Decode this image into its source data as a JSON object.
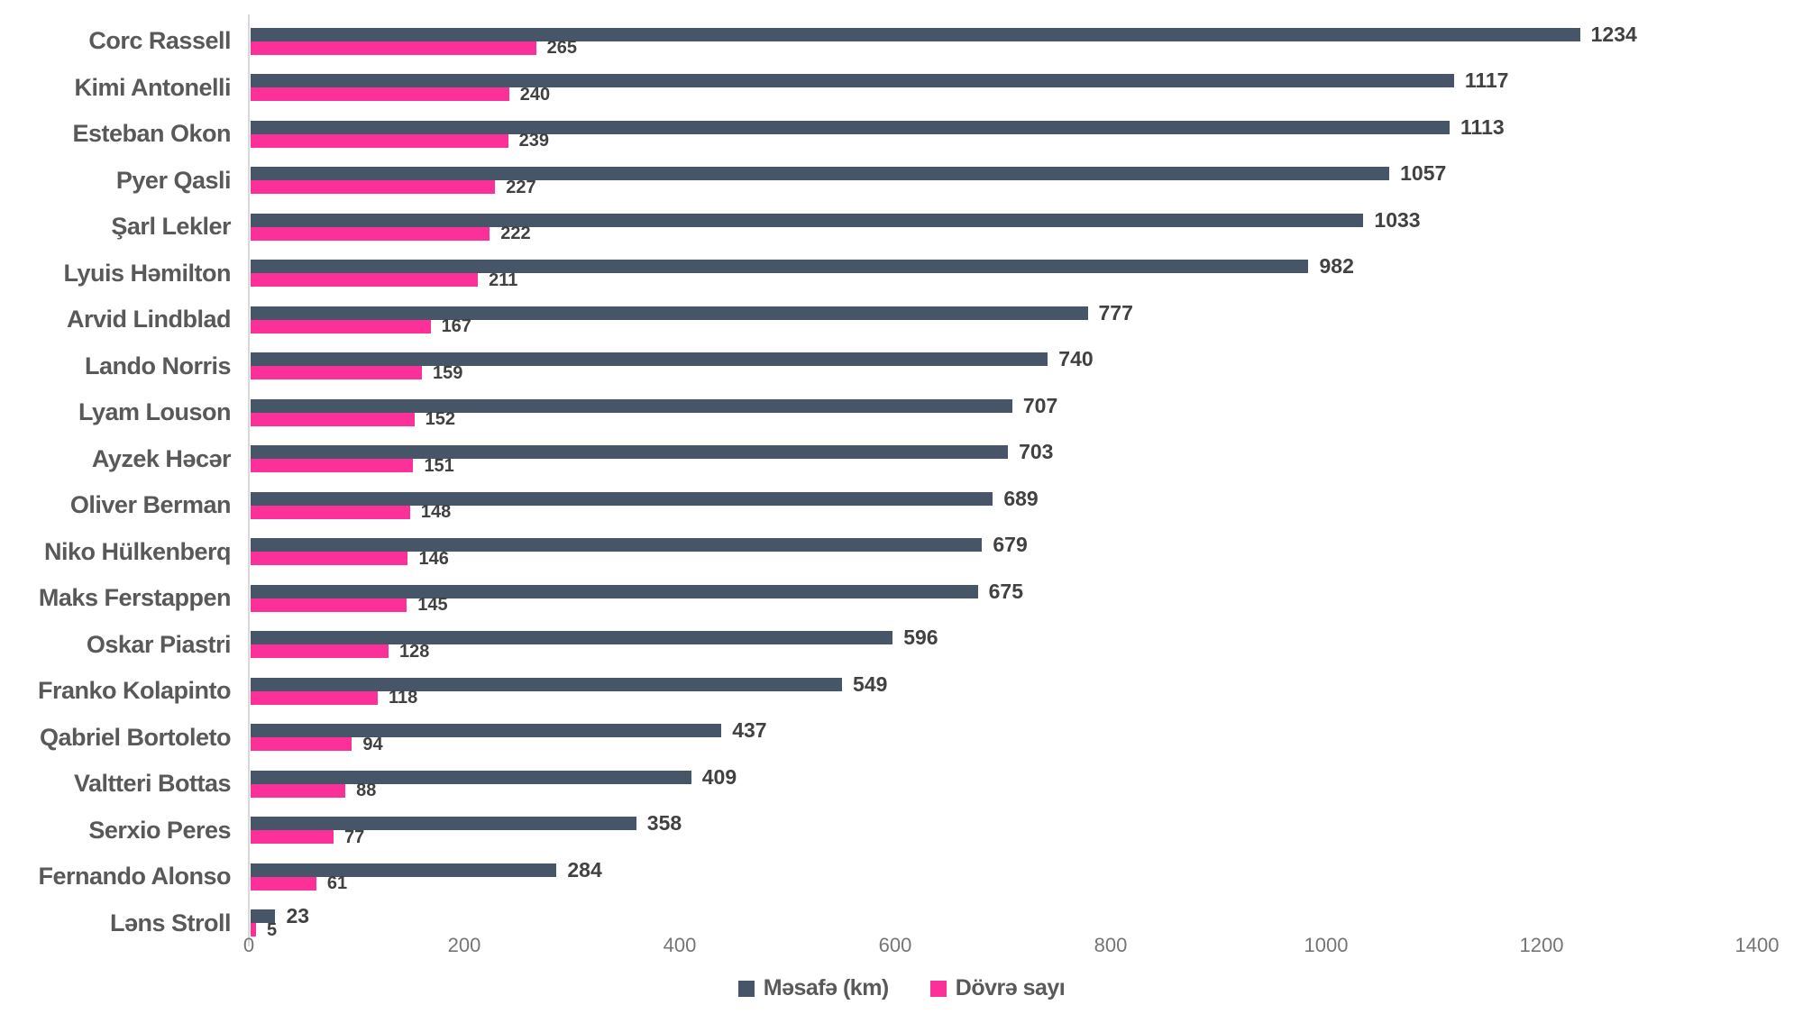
{
  "chart_data": {
    "type": "bar",
    "orientation": "horizontal",
    "title": "",
    "xlabel": "",
    "ylabel": "",
    "xlim": [
      0,
      1400
    ],
    "x_ticks": [
      0,
      200,
      400,
      600,
      800,
      1000,
      1200,
      1400
    ],
    "grid": false,
    "value_labels": true,
    "legend_position": "bottom",
    "categories": [
      "Corc Rassell",
      "Kimi Antonelli",
      "Esteban Okon",
      "Pyer Qasli",
      "Şarl Lekler",
      "Lyuis Həmilton",
      "Arvid Lindblad",
      "Lando Norris",
      "Lyam Louson",
      "Ayzek Həcər",
      "Oliver Berman",
      "Niko Hülkenberq",
      "Maks Ferstappen",
      "Oskar Piastri",
      "Franko Kolapinto",
      "Qabriel Bortoleto",
      "Valtteri Bottas",
      "Serxio Peres",
      "Fernando Alonso",
      "Ləns Stroll"
    ],
    "series": [
      {
        "name": "Məsafə (km)",
        "color": "#475569",
        "values": [
          1234,
          1117,
          1113,
          1057,
          1033,
          982,
          777,
          740,
          707,
          703,
          689,
          679,
          675,
          596,
          549,
          437,
          409,
          358,
          284,
          23
        ]
      },
      {
        "name": "Dövrə sayı",
        "color": "#fb3199",
        "values": [
          265,
          240,
          239,
          227,
          222,
          211,
          167,
          159,
          152,
          151,
          148,
          146,
          145,
          128,
          118,
          94,
          88,
          77,
          61,
          5
        ]
      }
    ]
  },
  "colors": {
    "background": "#ffffff",
    "axis_line": "#d9d9d9",
    "tick_text": "#757575",
    "category_text": "#595959",
    "value_text": "#414141",
    "series_dark": "#475569",
    "series_pink": "#fb3199"
  }
}
